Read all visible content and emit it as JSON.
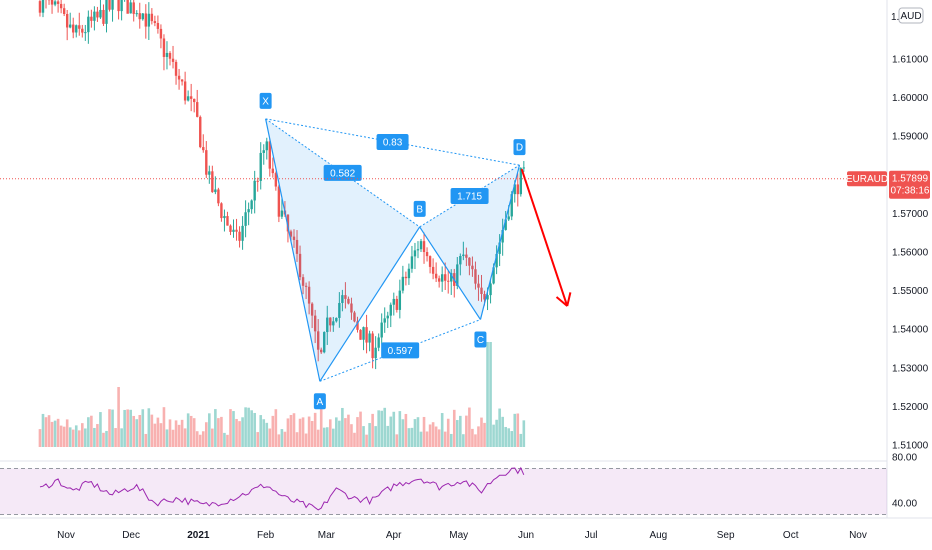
{
  "chart_data": [
    {
      "type": "candlestick",
      "symbol": "EURAUD",
      "currency_badge": "AUD",
      "last_price": "1.57899",
      "countdown": "07:38:16",
      "x_ticks": [
        "Nov",
        "Dec",
        "2021",
        "Feb",
        "Mar",
        "Apr",
        "May",
        "Jun",
        "Jul",
        "Aug",
        "Sep",
        "Oct",
        "Nov"
      ],
      "y_ticks": [
        "1.61000",
        "1.60000",
        "1.59000",
        "1.58000",
        "1.57000",
        "1.56000",
        "1.55000",
        "1.54000",
        "1.53000",
        "1.52000",
        "1.51000"
      ],
      "top_tick_partial": "1.",
      "ylim": [
        1.508,
        1.625
      ],
      "harmonic_pattern": {
        "points": [
          {
            "label": "X",
            "date": "2021-02-01",
            "price": 1.5945
          },
          {
            "label": "A",
            "date": "2021-02-26",
            "price": 1.5265
          },
          {
            "label": "B",
            "date": "2021-04-13",
            "price": 1.5665
          },
          {
            "label": "C",
            "date": "2021-05-11",
            "price": 1.5425
          },
          {
            "label": "D",
            "date": "2021-05-29",
            "price": 1.5825
          }
        ],
        "ratios": [
          {
            "label": "0.582",
            "between": "XB"
          },
          {
            "label": "0.83",
            "between": "XD"
          },
          {
            "label": "1.715",
            "between": "BD"
          },
          {
            "label": "0.597",
            "between": "AC"
          }
        ],
        "projection": {
          "from_date": "2021-05-30",
          "from_price": 1.5815,
          "to_date": "2021-06-20",
          "to_price": 1.546
        },
        "fill_color": "#2196f3",
        "up_color": "#26a69a",
        "down_color": "#ef5350",
        "arrow_color": "#ff0000"
      },
      "ohlc_anchors": [
        {
          "date": "2020-10-20",
          "price": 1.625
        },
        {
          "date": "2020-10-28",
          "price": 1.622
        },
        {
          "date": "2020-11-05",
          "price": 1.616
        },
        {
          "date": "2020-11-15",
          "price": 1.62
        },
        {
          "date": "2020-11-25",
          "price": 1.625
        },
        {
          "date": "2020-12-05",
          "price": 1.623
        },
        {
          "date": "2020-12-12",
          "price": 1.617
        },
        {
          "date": "2020-12-20",
          "price": 1.608
        },
        {
          "date": "2020-12-31",
          "price": 1.595
        },
        {
          "date": "2021-01-06",
          "price": 1.578
        },
        {
          "date": "2021-01-13",
          "price": 1.569
        },
        {
          "date": "2021-01-19",
          "price": 1.562
        },
        {
          "date": "2021-01-25",
          "price": 1.573
        },
        {
          "date": "2021-02-01",
          "price": 1.588
        },
        {
          "date": "2021-02-05",
          "price": 1.576
        },
        {
          "date": "2021-02-11",
          "price": 1.565
        },
        {
          "date": "2021-02-17",
          "price": 1.556
        },
        {
          "date": "2021-02-22",
          "price": 1.543
        },
        {
          "date": "2021-02-26",
          "price": 1.531
        },
        {
          "date": "2021-03-02",
          "price": 1.542
        },
        {
          "date": "2021-03-08",
          "price": 1.548
        },
        {
          "date": "2021-03-15",
          "price": 1.541
        },
        {
          "date": "2021-03-22",
          "price": 1.535
        },
        {
          "date": "2021-03-29",
          "price": 1.542
        },
        {
          "date": "2021-04-05",
          "price": 1.551
        },
        {
          "date": "2021-04-13",
          "price": 1.563
        },
        {
          "date": "2021-04-20",
          "price": 1.556
        },
        {
          "date": "2021-04-27",
          "price": 1.551
        },
        {
          "date": "2021-05-03",
          "price": 1.559
        },
        {
          "date": "2021-05-07",
          "price": 1.554
        },
        {
          "date": "2021-05-11",
          "price": 1.547
        },
        {
          "date": "2021-05-14",
          "price": 1.551
        },
        {
          "date": "2021-05-19",
          "price": 1.561
        },
        {
          "date": "2021-05-24",
          "price": 1.572
        },
        {
          "date": "2021-05-29",
          "price": 1.579
        }
      ]
    },
    {
      "type": "rsi",
      "y_ticks": [
        "80.00",
        "40.00"
      ],
      "band_upper": 70,
      "band_lower": 30,
      "band_color": "#9c27b0",
      "line_color": "#9c27b0",
      "ylim": [
        28,
        82
      ],
      "anchors": [
        {
          "date": "2020-10-20",
          "value": 52
        },
        {
          "date": "2020-10-28",
          "value": 60
        },
        {
          "date": "2020-11-04",
          "value": 50
        },
        {
          "date": "2020-11-12",
          "value": 58
        },
        {
          "date": "2020-11-22",
          "value": 47
        },
        {
          "date": "2020-12-03",
          "value": 55
        },
        {
          "date": "2020-12-12",
          "value": 40
        },
        {
          "date": "2020-12-22",
          "value": 44
        },
        {
          "date": "2021-01-04",
          "value": 38
        },
        {
          "date": "2021-01-14",
          "value": 42
        },
        {
          "date": "2021-01-25",
          "value": 50
        },
        {
          "date": "2021-02-01",
          "value": 56
        },
        {
          "date": "2021-02-10",
          "value": 44
        },
        {
          "date": "2021-02-18",
          "value": 39
        },
        {
          "date": "2021-02-26",
          "value": 33
        },
        {
          "date": "2021-03-05",
          "value": 52
        },
        {
          "date": "2021-03-14",
          "value": 44
        },
        {
          "date": "2021-03-22",
          "value": 42
        },
        {
          "date": "2021-04-01",
          "value": 55
        },
        {
          "date": "2021-04-13",
          "value": 62
        },
        {
          "date": "2021-04-22",
          "value": 54
        },
        {
          "date": "2021-05-03",
          "value": 60
        },
        {
          "date": "2021-05-11",
          "value": 50
        },
        {
          "date": "2021-05-19",
          "value": 64
        },
        {
          "date": "2021-05-26",
          "value": 70
        },
        {
          "date": "2021-05-31",
          "value": 67
        }
      ]
    }
  ]
}
